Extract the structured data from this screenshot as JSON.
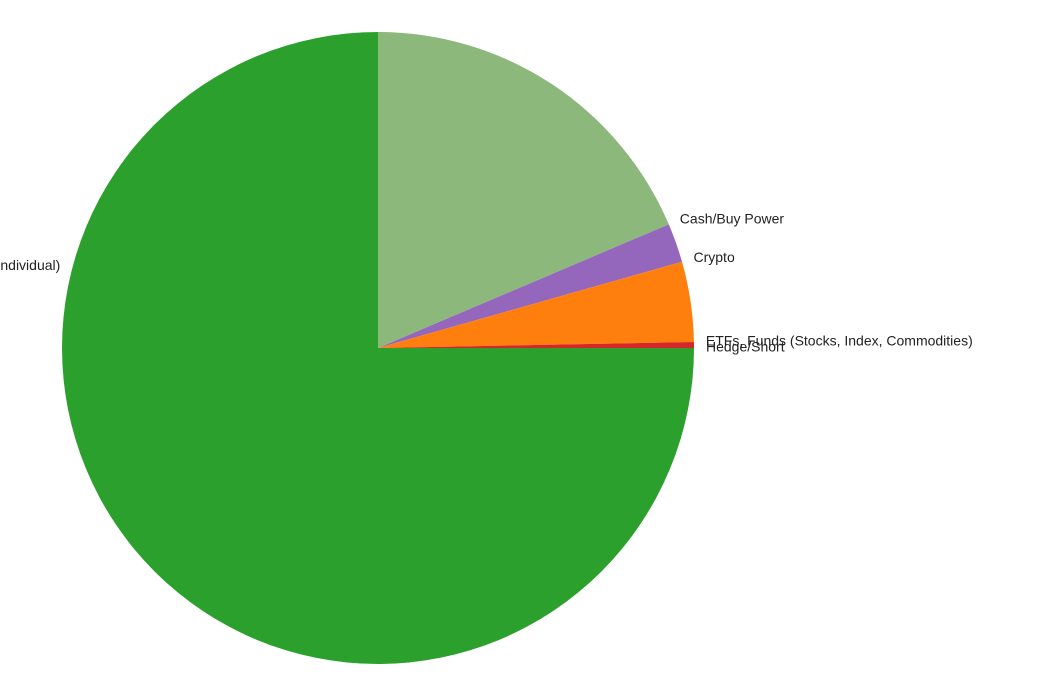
{
  "chart_data": {
    "type": "pie",
    "title": "",
    "start_angle_deg": 0,
    "direction": "clockwise",
    "slices": [
      {
        "label": "Cash/Buy Power",
        "value": 18.6,
        "color": "#8db87b"
      },
      {
        "label": "Crypto",
        "value": 2.0,
        "color": "#9467bd"
      },
      {
        "label": "ETFs, Funds (Stocks, Index, Commodities)",
        "value": 4.1,
        "color": "#ff7f0e"
      },
      {
        "label": "Hedge/Short",
        "value": 0.3,
        "color": "#d62728"
      },
      {
        "label": "Stocks (Individual)",
        "value": 75.0,
        "color": "#2ca02c"
      }
    ]
  }
}
